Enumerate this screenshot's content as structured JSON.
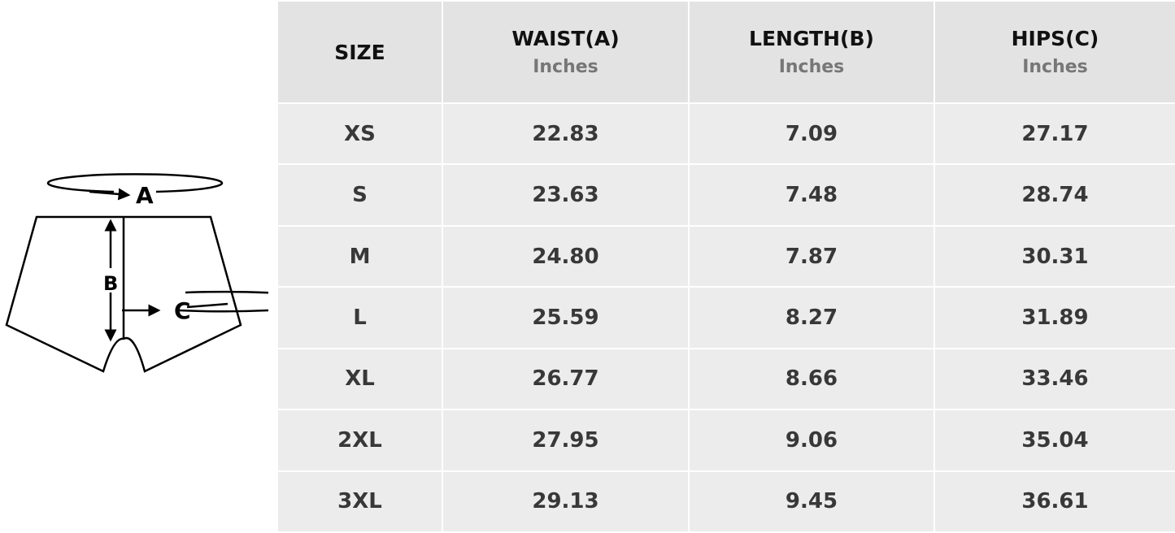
{
  "diagram": {
    "labels": [
      "A",
      "B",
      "C"
    ]
  },
  "table": {
    "headers": [
      {
        "label": "SIZE",
        "unit": ""
      },
      {
        "label": "WAIST(A)",
        "unit": "Inches"
      },
      {
        "label": "LENGTH(B)",
        "unit": "Inches"
      },
      {
        "label": "HIPS(C)",
        "unit": "Inches"
      }
    ],
    "rows": [
      [
        "XS",
        "22.83",
        "7.09",
        "27.17"
      ],
      [
        "S",
        "23.63",
        "7.48",
        "28.74"
      ],
      [
        "M",
        "24.80",
        "7.87",
        "30.31"
      ],
      [
        "L",
        "25.59",
        "8.27",
        "31.89"
      ],
      [
        "XL",
        "26.77",
        "8.66",
        "33.46"
      ],
      [
        "2XL",
        "27.95",
        "9.06",
        "35.04"
      ],
      [
        "3XL",
        "29.13",
        "9.45",
        "36.61"
      ]
    ]
  }
}
